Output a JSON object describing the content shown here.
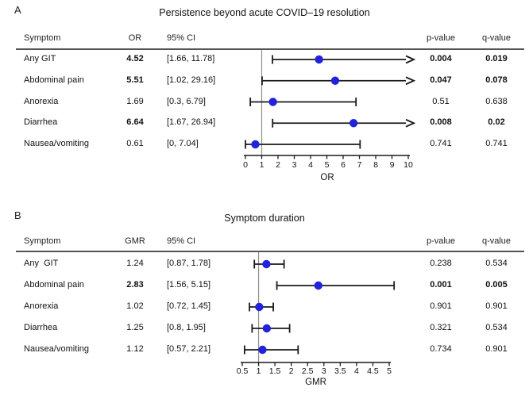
{
  "colors": {
    "marker": "#2222dd",
    "line": "#1a1a1a",
    "reference_line": "#909090",
    "text": "#111111"
  },
  "chart_data": [
    {
      "type": "forest",
      "panel_label": "A",
      "title": "Persistence beyond acute COVID–19 resolution",
      "columns": [
        "Symptom",
        "OR",
        "95% CI",
        "p-value",
        "q-value"
      ],
      "xlabel": "OR",
      "xlim": [
        0,
        10
      ],
      "reference_line": 1,
      "tick_labels": [
        "0",
        "1",
        "2",
        "3",
        "4",
        "5",
        "6",
        "7",
        "8",
        "9",
        "10"
      ],
      "tick_values": [
        0,
        1,
        2,
        3,
        4,
        5,
        6,
        7,
        8,
        9,
        10
      ],
      "rows": [
        {
          "symptom": "Any GIT",
          "effect_text": "4.52",
          "effect": 4.52,
          "ci_text": "[1.66, 11.78]",
          "lo": 1.66,
          "hi": 11.78,
          "p": "0.004",
          "q": "0.019",
          "significant": true,
          "arrow_right": true
        },
        {
          "symptom": "Abdominal pain",
          "effect_text": "5.51",
          "effect": 5.51,
          "ci_text": "[1.02, 29.16]",
          "lo": 1.02,
          "hi": 29.16,
          "p": "0.047",
          "q": "0.078",
          "significant": true,
          "arrow_right": true
        },
        {
          "symptom": "Anorexia",
          "effect_text": "1.69",
          "effect": 1.69,
          "ci_text": "[0.3, 6.79]",
          "lo": 0.3,
          "hi": 6.79,
          "p": "0.51",
          "q": "0.638",
          "significant": false,
          "arrow_right": false
        },
        {
          "symptom": "Diarrhea",
          "effect_text": "6.64",
          "effect": 6.64,
          "ci_text": "[1.67, 26.94]",
          "lo": 1.67,
          "hi": 26.94,
          "p": "0.008",
          "q": "0.02",
          "significant": true,
          "arrow_right": true
        },
        {
          "symptom": "Nausea/vomiting",
          "effect_text": "0.61",
          "effect": 0.61,
          "ci_text": "[0, 7.04]",
          "lo": 0,
          "hi": 7.04,
          "p": "0.741",
          "q": "0.741",
          "significant": false,
          "arrow_right": false
        }
      ]
    },
    {
      "type": "forest",
      "panel_label": "B",
      "title": "Symptom duration",
      "columns": [
        "Symptom",
        "GMR",
        "95% CI",
        "p-value",
        "q-value"
      ],
      "xlabel": "GMR",
      "xlim": [
        0.5,
        5
      ],
      "reference_line": 1,
      "tick_labels": [
        "0.5",
        "1",
        "1.5",
        "2",
        "2.5",
        "3",
        "3.5",
        "4",
        "4.5",
        "5"
      ],
      "tick_values": [
        0.5,
        1,
        1.5,
        2,
        2.5,
        3,
        3.5,
        4,
        4.5,
        5
      ],
      "rows": [
        {
          "symptom": "Any  GIT",
          "effect_text": "1.24",
          "effect": 1.24,
          "ci_text": "[0.87, 1.78]",
          "lo": 0.87,
          "hi": 1.78,
          "p": "0.238",
          "q": "0.534",
          "significant": false,
          "arrow_right": false
        },
        {
          "symptom": "Abdominal pain",
          "effect_text": "2.83",
          "effect": 2.83,
          "ci_text": "[1.56, 5.15]",
          "lo": 1.56,
          "hi": 5.15,
          "p": "0.001",
          "q": "0.005",
          "significant": true,
          "arrow_right": false
        },
        {
          "symptom": "Anorexia",
          "effect_text": "1.02",
          "effect": 1.02,
          "ci_text": "[0.72, 1.45]",
          "lo": 0.72,
          "hi": 1.45,
          "p": "0.901",
          "q": "0.901",
          "significant": false,
          "arrow_right": false
        },
        {
          "symptom": "Diarrhea",
          "effect_text": "1.25",
          "effect": 1.25,
          "ci_text": "[0.8, 1.95]",
          "lo": 0.8,
          "hi": 1.95,
          "p": "0.321",
          "q": "0.534",
          "significant": false,
          "arrow_right": false
        },
        {
          "symptom": "Nausea/vomiting",
          "effect_text": "1.12",
          "effect": 1.12,
          "ci_text": "[0.57, 2.21]",
          "lo": 0.57,
          "hi": 2.21,
          "p": "0.734",
          "q": "0.901",
          "significant": false,
          "arrow_right": false
        }
      ]
    }
  ]
}
